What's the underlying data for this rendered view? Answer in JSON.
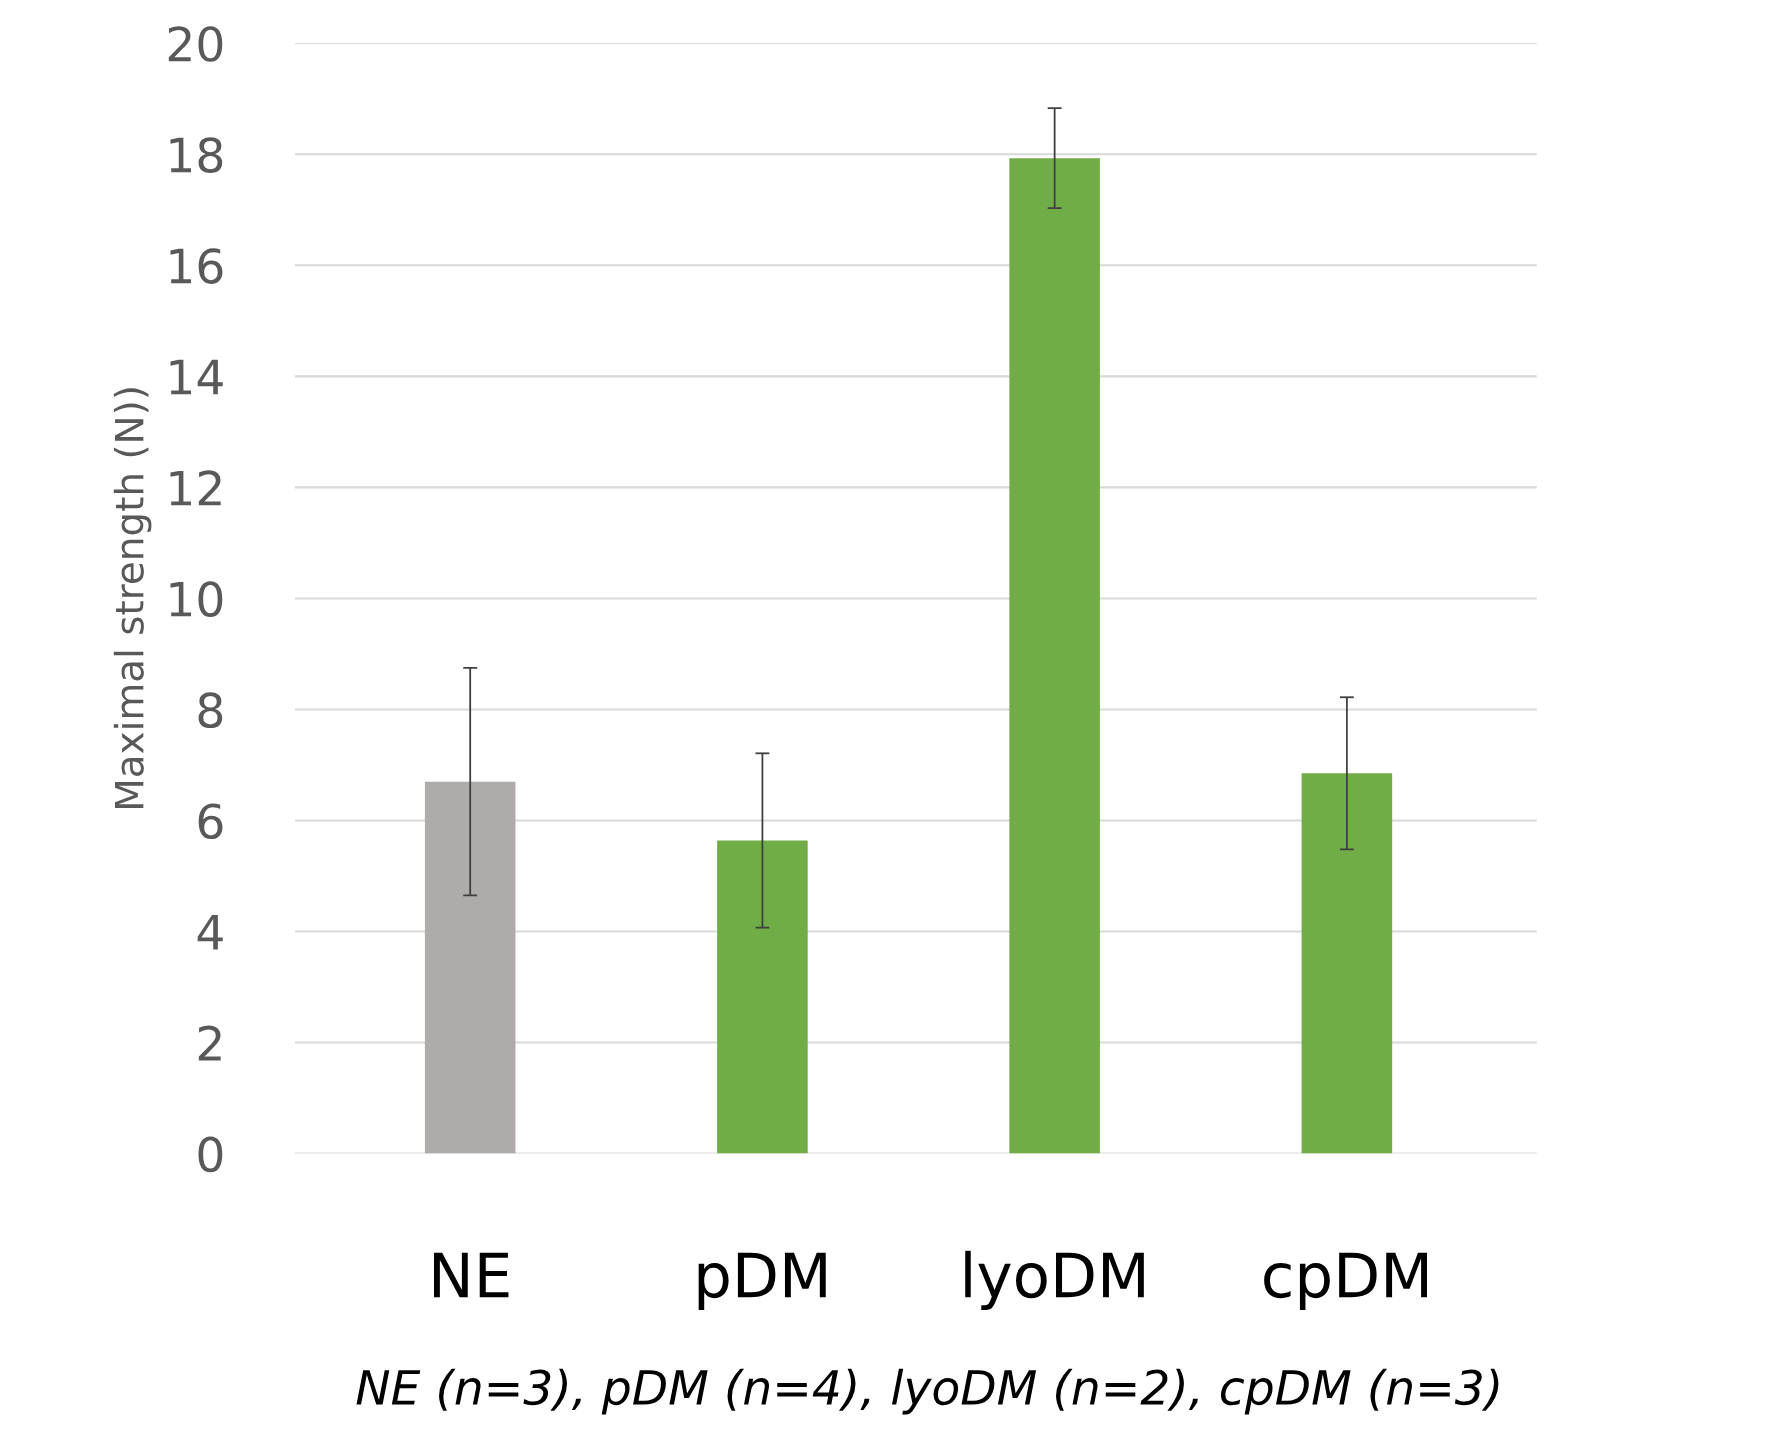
{
  "chart_data": {
    "type": "bar",
    "ylabel": "Maximal strength (N))",
    "categories": [
      "NE",
      "pDM",
      "lyoDM",
      "cpDM"
    ],
    "values": [
      6.7,
      5.64,
      17.93,
      6.85
    ],
    "colors": [
      "#afabab",
      "#70ad47",
      "#70ad47",
      "#70ad47"
    ],
    "errors": [
      2.05,
      1.57,
      0.9,
      1.37
    ],
    "ylim": [
      0,
      20
    ],
    "yticks": [
      0,
      2,
      4,
      6,
      8,
      10,
      12,
      14,
      16,
      18,
      20
    ],
    "grid": "y",
    "annotations": [
      "NE (n=3), pDM (n=4), lyoDM (n=2), cpDM (n=3)"
    ]
  }
}
